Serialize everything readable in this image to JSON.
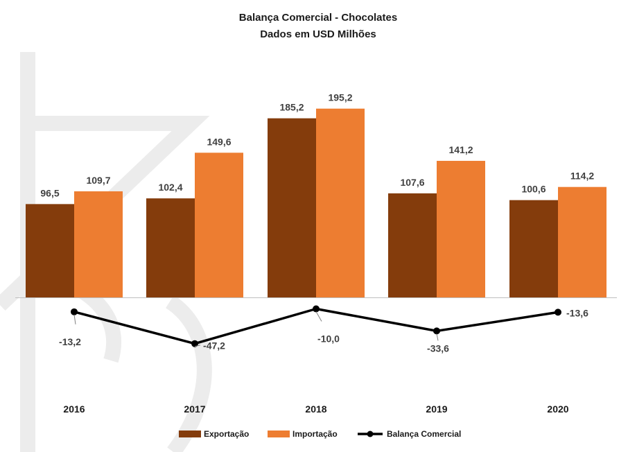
{
  "chart_data": {
    "type": "bar",
    "title": "Balança Comercial - Chocolates",
    "subtitle": "Dados em USD Milhões",
    "categories": [
      "2016",
      "2017",
      "2018",
      "2019",
      "2020"
    ],
    "series": [
      {
        "name": "Exportação",
        "type": "bar",
        "color": "#843C0C",
        "values": [
          96.5,
          102.4,
          185.2,
          107.6,
          100.6
        ],
        "labels": [
          "96,5",
          "102,4",
          "185,2",
          "107,6",
          "100,6"
        ]
      },
      {
        "name": "Importação",
        "type": "bar",
        "color": "#ED7D31",
        "values": [
          109.7,
          149.6,
          195.2,
          141.2,
          114.2
        ],
        "labels": [
          "109,7",
          "149,6",
          "195,2",
          "141,2",
          "114,2"
        ]
      },
      {
        "name": "Balança Comercial",
        "type": "line",
        "color": "#000000",
        "values": [
          -13.2,
          -47.2,
          -10.0,
          -33.6,
          -13.6
        ],
        "labels": [
          "-13,2",
          "-47,2",
          "-10,0",
          "-33,6",
          "-13,6"
        ]
      }
    ],
    "ylim": [
      -100,
      200
    ],
    "grid": false,
    "legend_position": "bottom"
  }
}
